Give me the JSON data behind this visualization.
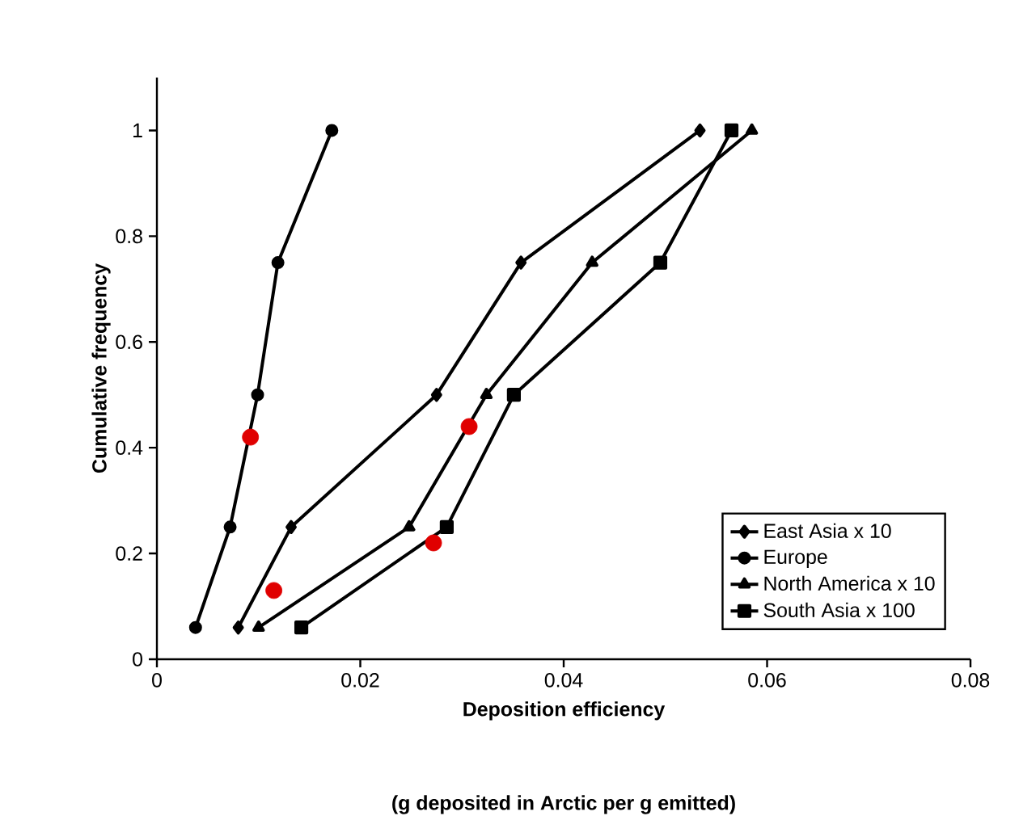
{
  "chart_data": {
    "type": "line",
    "xlabel": "Deposition efficiency",
    "ylabel": "Cumulative frequency",
    "annotations": [
      "(g deposited in Arctic per g emitted)"
    ],
    "xlim": [
      0,
      0.08
    ],
    "ylim": [
      0,
      1.1
    ],
    "xticks": [
      0,
      0.02,
      0.04,
      0.06,
      0.08
    ],
    "yticks": [
      0,
      0.2,
      0.4,
      0.6,
      0.8,
      1
    ],
    "legend": "bottom right",
    "grid": false,
    "line_style": "solid",
    "series": [
      {
        "name": "East Asia x 10",
        "color": "#000000",
        "marker": "diamond",
        "x": [
          0.008,
          0.0132,
          0.0275,
          0.0358,
          0.0534
        ],
        "values": [
          0.06,
          0.25,
          0.5,
          0.75,
          1
        ]
      },
      {
        "name": "Europe",
        "color": "#000000",
        "marker": "circle",
        "x": [
          0.0038,
          0.0072,
          0.0099,
          0.0119,
          0.0172
        ],
        "values": [
          0.06,
          0.25,
          0.5,
          0.75,
          1
        ]
      },
      {
        "name": "North America x 10",
        "color": "#000000",
        "marker": "triangle",
        "x": [
          0.01,
          0.0248,
          0.0324,
          0.0428,
          0.0585
        ],
        "values": [
          0.06,
          0.25,
          0.5,
          0.75,
          1
        ]
      },
      {
        "name": "South Asia x 100",
        "color": "#000000",
        "marker": "square",
        "x": [
          0.0142,
          0.0285,
          0.0351,
          0.0495,
          0.0565
        ],
        "values": [
          0.06,
          0.25,
          0.5,
          0.75,
          1
        ]
      },
      {
        "type": "scatter",
        "color": "#e00000",
        "marker": "circle",
        "x": [
          0.0092,
          0.0115,
          0.0272,
          0.0307
        ],
        "values": [
          0.42,
          0.13,
          0.22,
          0.44
        ]
      }
    ]
  }
}
